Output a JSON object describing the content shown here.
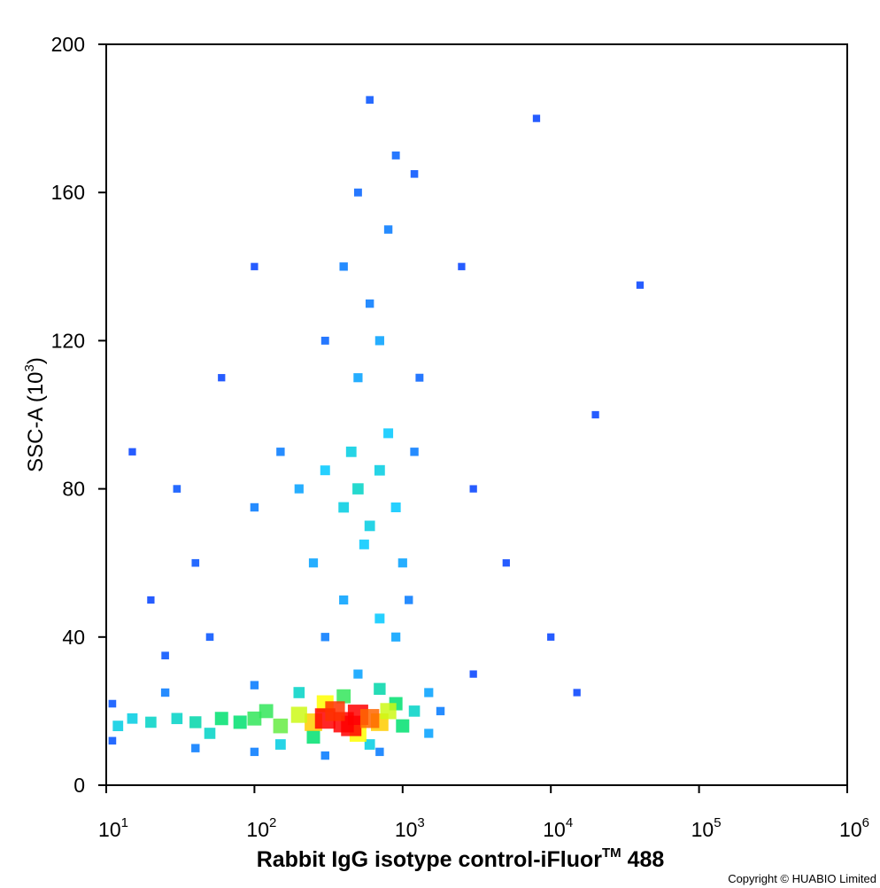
{
  "chart_data": {
    "type": "scatter",
    "xlabel": {
      "text": "Rabbit IgG isotype control-iFluor",
      "sup": "TM",
      "end": " 488"
    },
    "ylabel": {
      "text": "SSC-A  (10",
      "sup": "3",
      "end": ")"
    },
    "copyright": "Copyright © HUABIO Limited",
    "xscale": "log",
    "xlim": [
      10,
      1000000
    ],
    "ylim": [
      0,
      200
    ],
    "xticks": [
      {
        "value": 10,
        "label": "10",
        "sup": "1"
      },
      {
        "value": 100,
        "label": "10",
        "sup": "2"
      },
      {
        "value": 1000,
        "label": "10",
        "sup": "3"
      },
      {
        "value": 10000,
        "label": "10",
        "sup": "4"
      },
      {
        "value": 100000,
        "label": "10",
        "sup": "5"
      },
      {
        "value": 1000000,
        "label": "10",
        "sup": "6"
      }
    ],
    "yticks": [
      0,
      40,
      80,
      120,
      160,
      200
    ],
    "colorscale": [
      "#0000ff",
      "#00c8ff",
      "#00e070",
      "#ffff00",
      "#ff0000"
    ],
    "x": [
      3000,
      5000,
      3000,
      10000,
      20000,
      40000,
      8000,
      2500,
      15000,
      30,
      40,
      20,
      15,
      60,
      100,
      50,
      25,
      500,
      600,
      400,
      800,
      700,
      500,
      900,
      600,
      1200,
      300,
      1300,
      700,
      400,
      900,
      300,
      1100,
      500,
      400,
      700,
      600,
      300,
      800,
      450,
      550,
      900,
      200,
      150,
      100,
      250,
      1000,
      1200,
      11,
      11,
      25,
      40,
      100,
      300,
      700,
      1500,
      1500,
      1800,
      100,
      500,
      40,
      30,
      20,
      15,
      12,
      50,
      1200,
      700,
      200,
      150,
      600,
      100,
      150,
      120,
      80,
      60,
      900,
      1000,
      400,
      250,
      250,
      700,
      200,
      800,
      300,
      500,
      300,
      400,
      500,
      450,
      350,
      600
    ],
    "y": [
      80,
      60,
      30,
      40,
      100,
      135,
      180,
      140,
      25,
      80,
      60,
      50,
      90,
      110,
      140,
      40,
      35,
      110,
      130,
      140,
      150,
      120,
      160,
      170,
      185,
      165,
      120,
      110,
      45,
      50,
      40,
      40,
      50,
      80,
      75,
      85,
      70,
      85,
      95,
      90,
      65,
      75,
      80,
      90,
      75,
      60,
      60,
      90,
      22,
      12,
      25,
      10,
      9,
      8,
      9,
      14,
      25,
      20,
      27,
      30,
      17,
      18,
      17,
      18,
      16,
      14,
      20,
      26,
      25,
      11,
      11,
      18,
      16,
      20,
      17,
      18,
      22,
      16,
      24,
      13,
      17,
      17,
      19,
      20,
      22,
      14,
      18,
      17,
      19,
      16,
      20,
      18
    ],
    "density": [
      0.08,
      0.08,
      0.08,
      0.08,
      0.08,
      0.08,
      0.08,
      0.08,
      0.08,
      0.1,
      0.1,
      0.08,
      0.08,
      0.08,
      0.08,
      0.1,
      0.1,
      0.2,
      0.15,
      0.15,
      0.15,
      0.2,
      0.12,
      0.12,
      0.1,
      0.1,
      0.12,
      0.12,
      0.25,
      0.2,
      0.2,
      0.15,
      0.15,
      0.35,
      0.3,
      0.3,
      0.3,
      0.25,
      0.25,
      0.3,
      0.25,
      0.25,
      0.2,
      0.15,
      0.15,
      0.2,
      0.2,
      0.15,
      0.1,
      0.1,
      0.15,
      0.15,
      0.15,
      0.15,
      0.15,
      0.2,
      0.2,
      0.15,
      0.15,
      0.2,
      0.4,
      0.35,
      0.35,
      0.3,
      0.3,
      0.35,
      0.35,
      0.4,
      0.35,
      0.3,
      0.3,
      0.55,
      0.6,
      0.55,
      0.5,
      0.5,
      0.5,
      0.5,
      0.55,
      0.5,
      0.8,
      0.8,
      0.7,
      0.7,
      0.75,
      0.75,
      1,
      1,
      1,
      1,
      0.95,
      0.9
    ]
  }
}
